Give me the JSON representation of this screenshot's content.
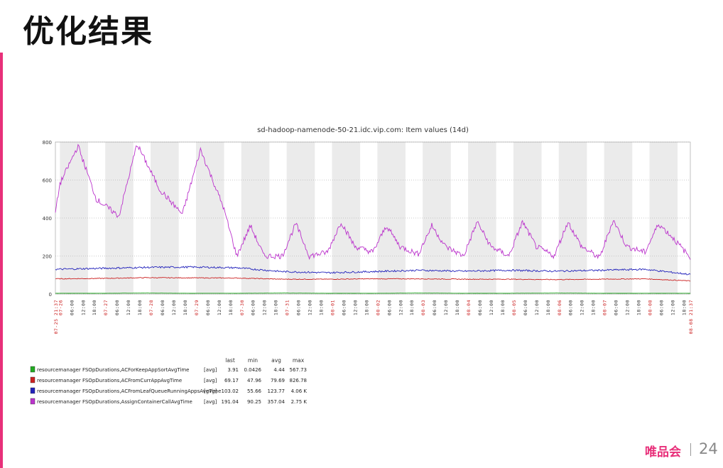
{
  "slide": {
    "title": "优化结果",
    "brand": "唯品会",
    "page_number": "24",
    "accent_color": "#e8307a"
  },
  "chart_data": {
    "type": "line",
    "title": "sd-hadoop-namenode-50-21.idc.vip.com: Item values (14d)",
    "ylim": [
      0,
      800
    ],
    "yticks": [
      "0",
      "200",
      "400",
      "600",
      "800"
    ],
    "x_range": [
      "07-25 21:37",
      "08-08 21:37"
    ],
    "grid": true,
    "x_label_start": "07-25 21:37",
    "x_label_end": "08-08 21:37",
    "day_labels": [
      "07-26",
      "07-27",
      "07-28",
      "07-29",
      "07-30",
      "07-31",
      "08-01",
      "08-02",
      "08-03",
      "08-04",
      "08-05",
      "08-06",
      "08-07",
      "08-08"
    ],
    "hour_labels": [
      "06:00",
      "12:00",
      "18:00"
    ],
    "legend_headers": [
      "last",
      "min",
      "avg",
      "max"
    ],
    "legend_placement": "bottom-left",
    "series": [
      {
        "name": "resourcemanager FSOpDurations,ACForKeepAppSortAvgTime",
        "agg": "[avg]",
        "color": "#22aa22",
        "last": "3.91",
        "min": "0.0426",
        "avg": "4.44",
        "max": "567.73",
        "x_days": [
          0,
          1,
          2,
          3,
          4,
          5,
          6,
          7,
          8,
          9,
          10,
          11,
          12,
          13,
          14
        ],
        "values": [
          4,
          4,
          5,
          4,
          4,
          5,
          4,
          4,
          5,
          4,
          4,
          5,
          4,
          4,
          4
        ]
      },
      {
        "name": "resourcemanager FSOpDurations,ACFromCurrAppAvgTime",
        "agg": "[avg]",
        "color": "#cc2222",
        "last": "69.17",
        "min": "47.96",
        "avg": "79.69",
        "max": "826.78",
        "x_days": [
          0,
          1,
          2,
          3,
          4,
          5,
          6,
          7,
          8,
          9,
          10,
          11,
          12,
          13,
          14
        ],
        "values": [
          80,
          82,
          86,
          85,
          84,
          78,
          78,
          80,
          80,
          78,
          78,
          76,
          78,
          80,
          69
        ]
      },
      {
        "name": "resourcemanager FSOpDurations,ACFromLeafQueueRunningAppsAvgTime",
        "agg": "[avg]",
        "color": "#2222bb",
        "last": "103.02",
        "min": "55.66",
        "avg": "123.77",
        "max": "4.06 K",
        "x_days": [
          0,
          1,
          2,
          3,
          4,
          5,
          6,
          7,
          8,
          9,
          10,
          11,
          12,
          13,
          14
        ],
        "values": [
          130,
          135,
          140,
          142,
          138,
          118,
          112,
          118,
          125,
          120,
          125,
          120,
          125,
          130,
          103
        ]
      },
      {
        "name": "resourcemanager FSOpDurations,AssignContainerCallAvgTime",
        "agg": "[avg]",
        "color": "#bb33cc",
        "last": "191.04",
        "min": "90.25",
        "avg": "357.04",
        "max": "2.75 K",
        "x_days": [
          0,
          0.1,
          0.5,
          0.9,
          1.4,
          1.8,
          2.3,
          2.8,
          3.2,
          3.7,
          4.0,
          4.3,
          4.6,
          5.0,
          5.3,
          5.6,
          6.0,
          6.3,
          6.6,
          7.0,
          7.3,
          7.6,
          8.0,
          8.3,
          8.6,
          9.0,
          9.3,
          9.6,
          10.0,
          10.3,
          10.6,
          11.0,
          11.3,
          11.6,
          12.0,
          12.3,
          12.6,
          13.0,
          13.3,
          13.6,
          14.0
        ],
        "values": [
          430,
          580,
          780,
          500,
          410,
          790,
          550,
          420,
          760,
          460,
          200,
          360,
          200,
          200,
          370,
          200,
          220,
          380,
          250,
          220,
          360,
          250,
          210,
          360,
          250,
          200,
          380,
          250,
          200,
          380,
          250,
          200,
          380,
          250,
          190,
          390,
          250,
          220,
          370,
          300,
          191
        ]
      }
    ]
  }
}
